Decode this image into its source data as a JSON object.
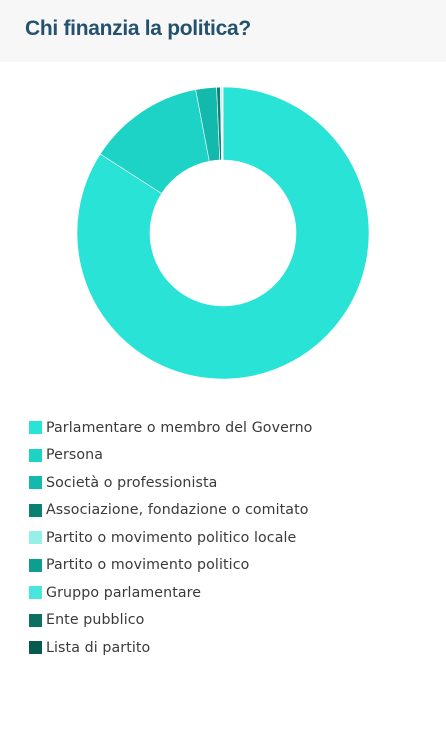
{
  "header": {
    "title": "Chi finanzia la politica?"
  },
  "chart_data": {
    "type": "pie",
    "variant": "donut",
    "title": "Chi finanzia la politica?",
    "categories": [
      "Parlamentare o membro del Governo",
      "Persona",
      "Società o professionista",
      "Associazione, fondazione o comitato",
      "Partito o movimento politico locale",
      "Partito o movimento politico",
      "Gruppo parlamentare",
      "Ente pubblico",
      "Lista di partito"
    ],
    "values": [
      84.1,
      12.9,
      2.3,
      0.4,
      0.1,
      0.1,
      0.05,
      0.03,
      0.02
    ],
    "colors": [
      "#2ae3d7",
      "#1dd3c6",
      "#13b9ac",
      "#0b8072",
      "#96f0ea",
      "#0e9e8f",
      "#48e6dc",
      "#0c6f62",
      "#075a50"
    ],
    "legend_position": "bottom"
  }
}
